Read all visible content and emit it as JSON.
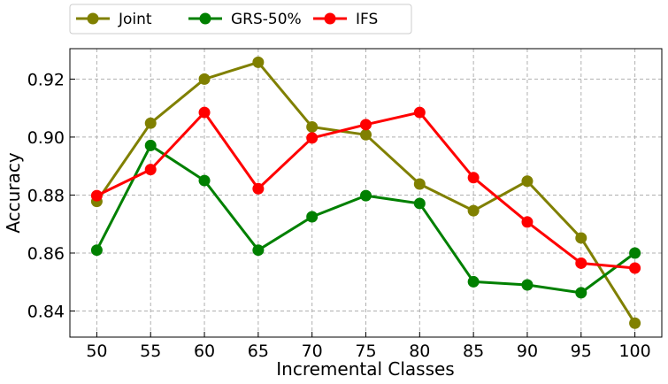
{
  "chart_data": {
    "type": "line",
    "xlabel": "Incremental Classes",
    "ylabel": "Accuracy",
    "x": [
      50,
      55,
      60,
      65,
      70,
      75,
      80,
      85,
      90,
      95,
      100
    ],
    "xlim": [
      47.5,
      102.5
    ],
    "ylim": [
      0.831,
      0.9305
    ],
    "yticks": [
      0.84,
      0.86,
      0.88,
      0.9,
      0.92
    ],
    "ytick_labels": [
      "0.84",
      "0.86",
      "0.88",
      "0.90",
      "0.92"
    ],
    "xtick_labels": [
      "50",
      "55",
      "60",
      "65",
      "70",
      "75",
      "80",
      "85",
      "90",
      "95",
      "100"
    ],
    "grid": true,
    "legend_position": "top-left, above plot",
    "series": [
      {
        "name": "Joint",
        "color": "#808000",
        "values": [
          0.8778,
          0.9048,
          0.92,
          0.9258,
          0.9035,
          0.9008,
          0.8838,
          0.8746,
          0.8848,
          0.8652,
          0.8358
        ]
      },
      {
        "name": "GRS-50%",
        "color": "#008000",
        "values": [
          0.861,
          0.8971,
          0.885,
          0.861,
          0.8725,
          0.8798,
          0.8771,
          0.8501,
          0.849,
          0.8463,
          0.86
        ]
      },
      {
        "name": "IFS",
        "color": "#ff0000",
        "values": [
          0.8798,
          0.8888,
          0.9085,
          0.8822,
          0.8997,
          0.9043,
          0.9085,
          0.886,
          0.8707,
          0.8565,
          0.8548
        ]
      }
    ]
  }
}
